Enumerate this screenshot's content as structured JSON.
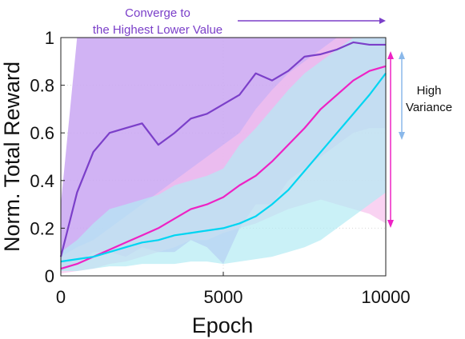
{
  "chart_data": {
    "type": "line",
    "xlabel": "Epoch",
    "ylabel": "Norm. Total Reward",
    "xlim": [
      0,
      10000
    ],
    "ylim": [
      0,
      1
    ],
    "xticks": [
      0,
      5000,
      10000
    ],
    "xtick_labels": [
      "0",
      "5000",
      "10000"
    ],
    "yticks": [
      0,
      0.2,
      0.4,
      0.6,
      0.8,
      1
    ],
    "ytick_labels": [
      "0",
      "0.2",
      "0.4",
      "0.6",
      "0.8",
      "1"
    ],
    "grid": true,
    "x": [
      0,
      500,
      1000,
      1500,
      2000,
      2500,
      3000,
      3500,
      4000,
      4500,
      5000,
      5500,
      6000,
      6500,
      7000,
      7500,
      8000,
      8500,
      9000,
      9500,
      10000
    ],
    "series": [
      {
        "color": "#7b3fc9",
        "band_color": "#c9a6f2",
        "values": [
          0.08,
          0.35,
          0.52,
          0.6,
          0.62,
          0.64,
          0.55,
          0.6,
          0.66,
          0.68,
          0.72,
          0.76,
          0.85,
          0.82,
          0.86,
          0.92,
          0.93,
          0.95,
          0.98,
          0.97,
          0.97
        ],
        "band_low": [
          0.02,
          0.05,
          0.1,
          0.1,
          0.08,
          0.12,
          0.1,
          0.1,
          0.15,
          0.12,
          0.05,
          0.2,
          0.3,
          0.3,
          0.4,
          0.45,
          0.5,
          0.55,
          0.6,
          0.62,
          0.62
        ],
        "band_high": [
          0.3,
          1,
          1,
          1,
          1,
          1,
          1,
          1,
          1,
          1,
          1,
          1,
          1,
          1,
          1,
          1,
          1,
          1,
          1,
          1,
          1
        ]
      },
      {
        "color": "#ee22c4",
        "band_color": "#f6c1ec",
        "values": [
          0.03,
          0.05,
          0.08,
          0.11,
          0.14,
          0.17,
          0.2,
          0.24,
          0.28,
          0.3,
          0.33,
          0.38,
          0.42,
          0.48,
          0.55,
          0.62,
          0.7,
          0.76,
          0.82,
          0.86,
          0.88
        ],
        "band_low": [
          0.01,
          0.02,
          0.03,
          0.05,
          0.06,
          0.08,
          0.1,
          0.12,
          0.15,
          0.15,
          0.18,
          0.2,
          0.22,
          0.25,
          0.28,
          0.3,
          0.32,
          0.3,
          0.28,
          0.26,
          0.22
        ],
        "band_high": [
          0.08,
          0.12,
          0.15,
          0.2,
          0.25,
          0.3,
          0.35,
          0.4,
          0.45,
          0.5,
          0.55,
          0.6,
          0.7,
          0.78,
          0.85,
          0.9,
          0.95,
          1,
          1,
          1,
          1
        ]
      },
      {
        "color": "#00d5f2",
        "band_color": "#b3ebf4",
        "values": [
          0.06,
          0.07,
          0.08,
          0.1,
          0.12,
          0.14,
          0.15,
          0.17,
          0.18,
          0.19,
          0.2,
          0.22,
          0.25,
          0.3,
          0.36,
          0.44,
          0.52,
          0.6,
          0.68,
          0.76,
          0.85
        ],
        "band_low": [
          0.02,
          0.02,
          0.03,
          0.04,
          0.04,
          0.05,
          0.05,
          0.05,
          0.06,
          0.06,
          0.05,
          0.06,
          0.07,
          0.08,
          0.1,
          0.12,
          0.15,
          0.2,
          0.25,
          0.3,
          0.35
        ],
        "band_high": [
          0.1,
          0.15,
          0.22,
          0.28,
          0.3,
          0.32,
          0.34,
          0.38,
          0.4,
          0.42,
          0.45,
          0.55,
          0.62,
          0.7,
          0.78,
          0.85,
          0.9,
          0.95,
          1,
          1,
          1
        ]
      }
    ],
    "annotations": {
      "converge": {
        "lines": [
          "Converge to",
          "the Highest Lower Value"
        ],
        "color": "#7b3fc9"
      },
      "variance": {
        "lines": [
          "High",
          "Variance"
        ],
        "color": "#111111",
        "arrow_colors": [
          "#ee22c4",
          "#8ab8ea"
        ]
      }
    }
  }
}
